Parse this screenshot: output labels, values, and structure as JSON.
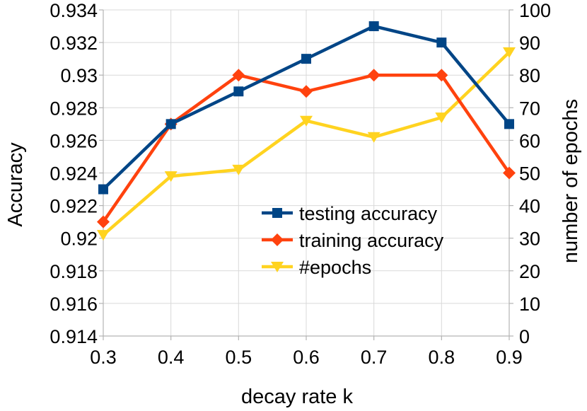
{
  "chart_data": {
    "type": "line",
    "x": [
      0.3,
      0.4,
      0.5,
      0.6,
      0.7,
      0.8,
      0.9
    ],
    "x_tick_labels": [
      "0.3",
      "0.4",
      "0.5",
      "0.6",
      "0.7",
      "0.8",
      "0.9"
    ],
    "xlabel": "decay rate k",
    "ylabel": "Accuracy",
    "y2label": "number of epochs",
    "ylim": [
      0.914,
      0.934
    ],
    "y_tick_labels": [
      "0.914",
      "0.916",
      "0.918",
      "0.92",
      "0.922",
      "0.924",
      "0.926",
      "0.928",
      "0.93",
      "0.932",
      "0.934"
    ],
    "y2lim": [
      0,
      100
    ],
    "y2_tick_labels": [
      "0",
      "10",
      "20",
      "30",
      "40",
      "50",
      "60",
      "70",
      "80",
      "90",
      "100"
    ],
    "grid": true,
    "legend_position": "center-right",
    "series": [
      {
        "name": "testing accuracy",
        "axis": "left",
        "color": "#004586",
        "marker": "square",
        "values": [
          0.923,
          0.927,
          0.929,
          0.931,
          0.933,
          0.932,
          0.927
        ]
      },
      {
        "name": "training accuracy",
        "axis": "left",
        "color": "#ff420e",
        "marker": "diamond",
        "values": [
          0.921,
          0.927,
          0.93,
          0.929,
          0.93,
          0.93,
          0.924
        ]
      },
      {
        "name": "#epochs",
        "axis": "right",
        "color": "#ffd320",
        "marker": "triangle-down",
        "values": [
          31,
          49,
          51,
          66,
          61,
          67,
          87
        ]
      }
    ]
  }
}
